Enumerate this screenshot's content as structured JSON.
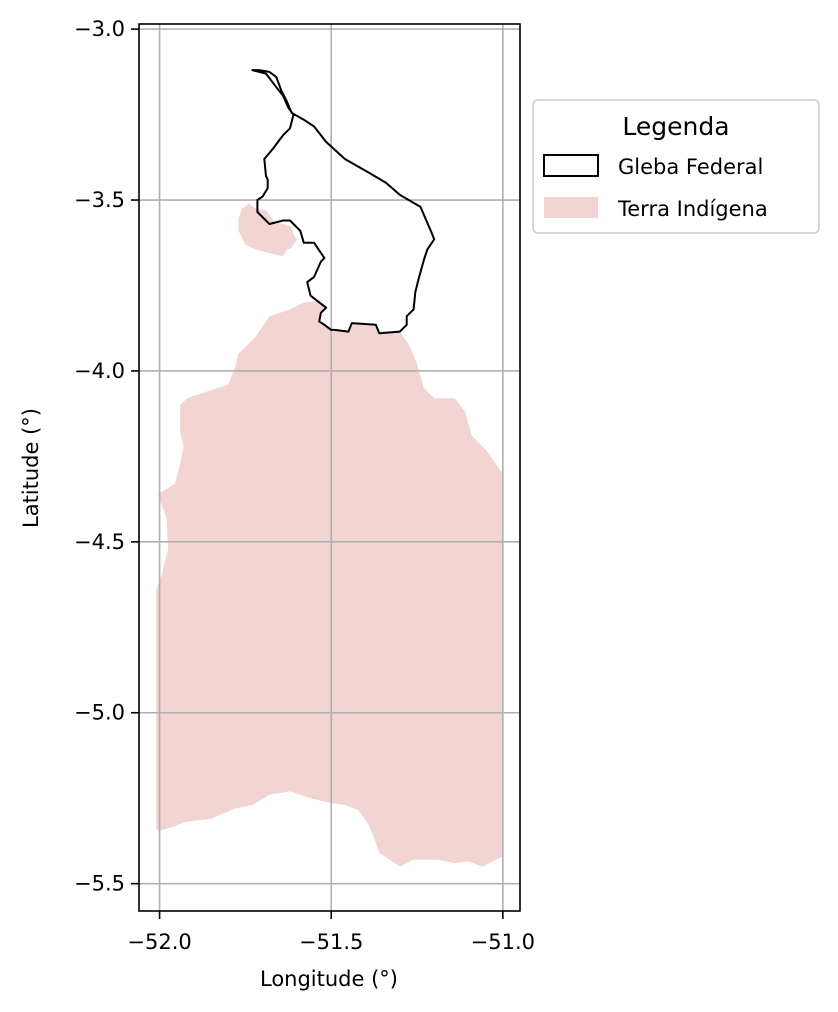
{
  "chart_data": {
    "type": "map",
    "xlabel": "Longitude (°)",
    "ylabel": "Latitude (°)",
    "xlim": [
      -52.06,
      -50.95
    ],
    "ylim": [
      -5.58,
      -2.985
    ],
    "grid": true,
    "x_ticks": [
      -52.0,
      -51.5,
      -51.0
    ],
    "x_tick_labels": [
      "−52.0",
      "−51.5",
      "−51.0"
    ],
    "y_ticks": [
      -3.0,
      -3.5,
      -4.0,
      -4.5,
      -5.0,
      -5.5
    ],
    "y_tick_labels": [
      "−3.0",
      "−3.5",
      "−4.0",
      "−4.5",
      "−5.0",
      "−5.5"
    ],
    "legend": {
      "title": "Legenda",
      "placement": "outside-upper-right",
      "entries": [
        {
          "label": "Gleba Federal",
          "style": "outline"
        },
        {
          "label": "Terra Indígena",
          "style": "fill"
        }
      ]
    },
    "colors": {
      "gleba_edge": "#000000",
      "terra_fill": "#f2d4d2",
      "grid": "#b0b0b0",
      "axes": "#000000"
    },
    "layers": [
      {
        "name": "Gleba Federal",
        "kind": "outline",
        "coordinates": [
          [
            -51.71,
            -3.12
          ],
          [
            -51.68,
            -3.125
          ],
          [
            -51.66,
            -3.14
          ],
          [
            -51.645,
            -3.18
          ],
          [
            -51.63,
            -3.21
          ],
          [
            -51.615,
            -3.245
          ],
          [
            -51.58,
            -3.265
          ],
          [
            -51.55,
            -3.285
          ],
          [
            -51.515,
            -3.33
          ],
          [
            -51.46,
            -3.38
          ],
          [
            -51.39,
            -3.42
          ],
          [
            -51.34,
            -3.45
          ],
          [
            -51.3,
            -3.485
          ],
          [
            -51.24,
            -3.52
          ],
          [
            -51.225,
            -3.555
          ],
          [
            -51.21,
            -3.59
          ],
          [
            -51.2,
            -3.615
          ],
          [
            -51.22,
            -3.645
          ],
          [
            -51.23,
            -3.675
          ],
          [
            -51.245,
            -3.73
          ],
          [
            -51.255,
            -3.77
          ],
          [
            -51.26,
            -3.82
          ],
          [
            -51.28,
            -3.84
          ],
          [
            -51.28,
            -3.865
          ],
          [
            -51.3,
            -3.885
          ],
          [
            -51.36,
            -3.89
          ],
          [
            -51.37,
            -3.865
          ],
          [
            -51.44,
            -3.86
          ],
          [
            -51.45,
            -3.885
          ],
          [
            -51.49,
            -3.88
          ],
          [
            -51.5,
            -3.88
          ],
          [
            -51.52,
            -3.865
          ],
          [
            -51.535,
            -3.855
          ],
          [
            -51.53,
            -3.83
          ],
          [
            -51.515,
            -3.815
          ],
          [
            -51.56,
            -3.78
          ],
          [
            -51.57,
            -3.74
          ],
          [
            -51.55,
            -3.725
          ],
          [
            -51.53,
            -3.68
          ],
          [
            -51.52,
            -3.67
          ],
          [
            -51.55,
            -3.625
          ],
          [
            -51.58,
            -3.625
          ],
          [
            -51.59,
            -3.59
          ],
          [
            -51.61,
            -3.57
          ],
          [
            -51.62,
            -3.56
          ],
          [
            -51.64,
            -3.56
          ],
          [
            -51.68,
            -3.57
          ],
          [
            -51.715,
            -3.535
          ],
          [
            -51.715,
            -3.5
          ],
          [
            -51.7,
            -3.49
          ],
          [
            -51.685,
            -3.465
          ],
          [
            -51.685,
            -3.44
          ],
          [
            -51.69,
            -3.43
          ],
          [
            -51.695,
            -3.38
          ],
          [
            -51.67,
            -3.35
          ],
          [
            -51.655,
            -3.33
          ],
          [
            -51.64,
            -3.31
          ],
          [
            -51.62,
            -3.29
          ],
          [
            -51.61,
            -3.25
          ],
          [
            -51.625,
            -3.23
          ],
          [
            -51.64,
            -3.195
          ],
          [
            -51.66,
            -3.17
          ],
          [
            -51.69,
            -3.13
          ],
          [
            -51.73,
            -3.12
          ],
          [
            -51.71,
            -3.12
          ]
        ]
      },
      {
        "name": "Terra Indígena",
        "kind": "fill",
        "parts": [
          [
            [
              -51.72,
              -3.525
            ],
            [
              -51.69,
              -3.53
            ],
            [
              -51.665,
              -3.565
            ],
            [
              -51.64,
              -3.57
            ],
            [
              -51.615,
              -3.58
            ],
            [
              -51.61,
              -3.6
            ],
            [
              -51.6,
              -3.615
            ],
            [
              -51.615,
              -3.64
            ],
            [
              -51.63,
              -3.645
            ],
            [
              -51.64,
              -3.665
            ],
            [
              -51.66,
              -3.66
            ],
            [
              -51.7,
              -3.65
            ],
            [
              -51.72,
              -3.645
            ],
            [
              -51.75,
              -3.63
            ],
            [
              -51.77,
              -3.59
            ],
            [
              -51.77,
              -3.555
            ],
            [
              -51.76,
              -3.525
            ],
            [
              -51.74,
              -3.51
            ],
            [
              -51.72,
              -3.525
            ]
          ],
          [
            [
              -51.58,
              -3.8
            ],
            [
              -51.54,
              -3.795
            ],
            [
              -51.52,
              -3.81
            ],
            [
              -51.53,
              -3.83
            ],
            [
              -51.535,
              -3.855
            ],
            [
              -51.52,
              -3.865
            ],
            [
              -51.5,
              -3.88
            ],
            [
              -51.49,
              -3.88
            ],
            [
              -51.45,
              -3.885
            ],
            [
              -51.44,
              -3.86
            ],
            [
              -51.37,
              -3.865
            ],
            [
              -51.36,
              -3.89
            ],
            [
              -51.3,
              -3.885
            ],
            [
              -51.29,
              -3.9
            ],
            [
              -51.27,
              -3.93
            ],
            [
              -51.25,
              -3.98
            ],
            [
              -51.23,
              -4.05
            ],
            [
              -51.2,
              -4.08
            ],
            [
              -51.14,
              -4.08
            ],
            [
              -51.11,
              -4.12
            ],
            [
              -51.09,
              -4.19
            ],
            [
              -51.05,
              -4.23
            ],
            [
              -51.0,
              -4.3
            ],
            [
              -51.0,
              -5.42
            ],
            [
              -51.02,
              -5.43
            ],
            [
              -51.06,
              -5.45
            ],
            [
              -51.1,
              -5.435
            ],
            [
              -51.14,
              -5.44
            ],
            [
              -51.19,
              -5.43
            ],
            [
              -51.26,
              -5.43
            ],
            [
              -51.3,
              -5.45
            ],
            [
              -51.36,
              -5.41
            ],
            [
              -51.37,
              -5.38
            ],
            [
              -51.39,
              -5.33
            ],
            [
              -51.42,
              -5.285
            ],
            [
              -51.46,
              -5.27
            ],
            [
              -51.5,
              -5.265
            ],
            [
              -51.56,
              -5.25
            ],
            [
              -51.62,
              -5.23
            ],
            [
              -51.68,
              -5.24
            ],
            [
              -51.73,
              -5.27
            ],
            [
              -51.78,
              -5.28
            ],
            [
              -51.85,
              -5.31
            ],
            [
              -51.93,
              -5.32
            ],
            [
              -51.95,
              -5.33
            ],
            [
              -52.0,
              -5.345
            ],
            [
              -52.01,
              -5.34
            ],
            [
              -52.01,
              -4.64
            ],
            [
              -51.995,
              -4.6
            ],
            [
              -51.975,
              -4.52
            ],
            [
              -51.98,
              -4.43
            ],
            [
              -52.005,
              -4.36
            ],
            [
              -51.955,
              -4.33
            ],
            [
              -51.94,
              -4.27
            ],
            [
              -51.93,
              -4.22
            ],
            [
              -51.94,
              -4.18
            ],
            [
              -51.94,
              -4.1
            ],
            [
              -51.92,
              -4.08
            ],
            [
              -51.86,
              -4.06
            ],
            [
              -51.8,
              -4.04
            ],
            [
              -51.78,
              -3.99
            ],
            [
              -51.77,
              -3.95
            ],
            [
              -51.72,
              -3.9
            ],
            [
              -51.68,
              -3.84
            ],
            [
              -51.62,
              -3.82
            ],
            [
              -51.58,
              -3.8
            ]
          ]
        ]
      }
    ]
  }
}
